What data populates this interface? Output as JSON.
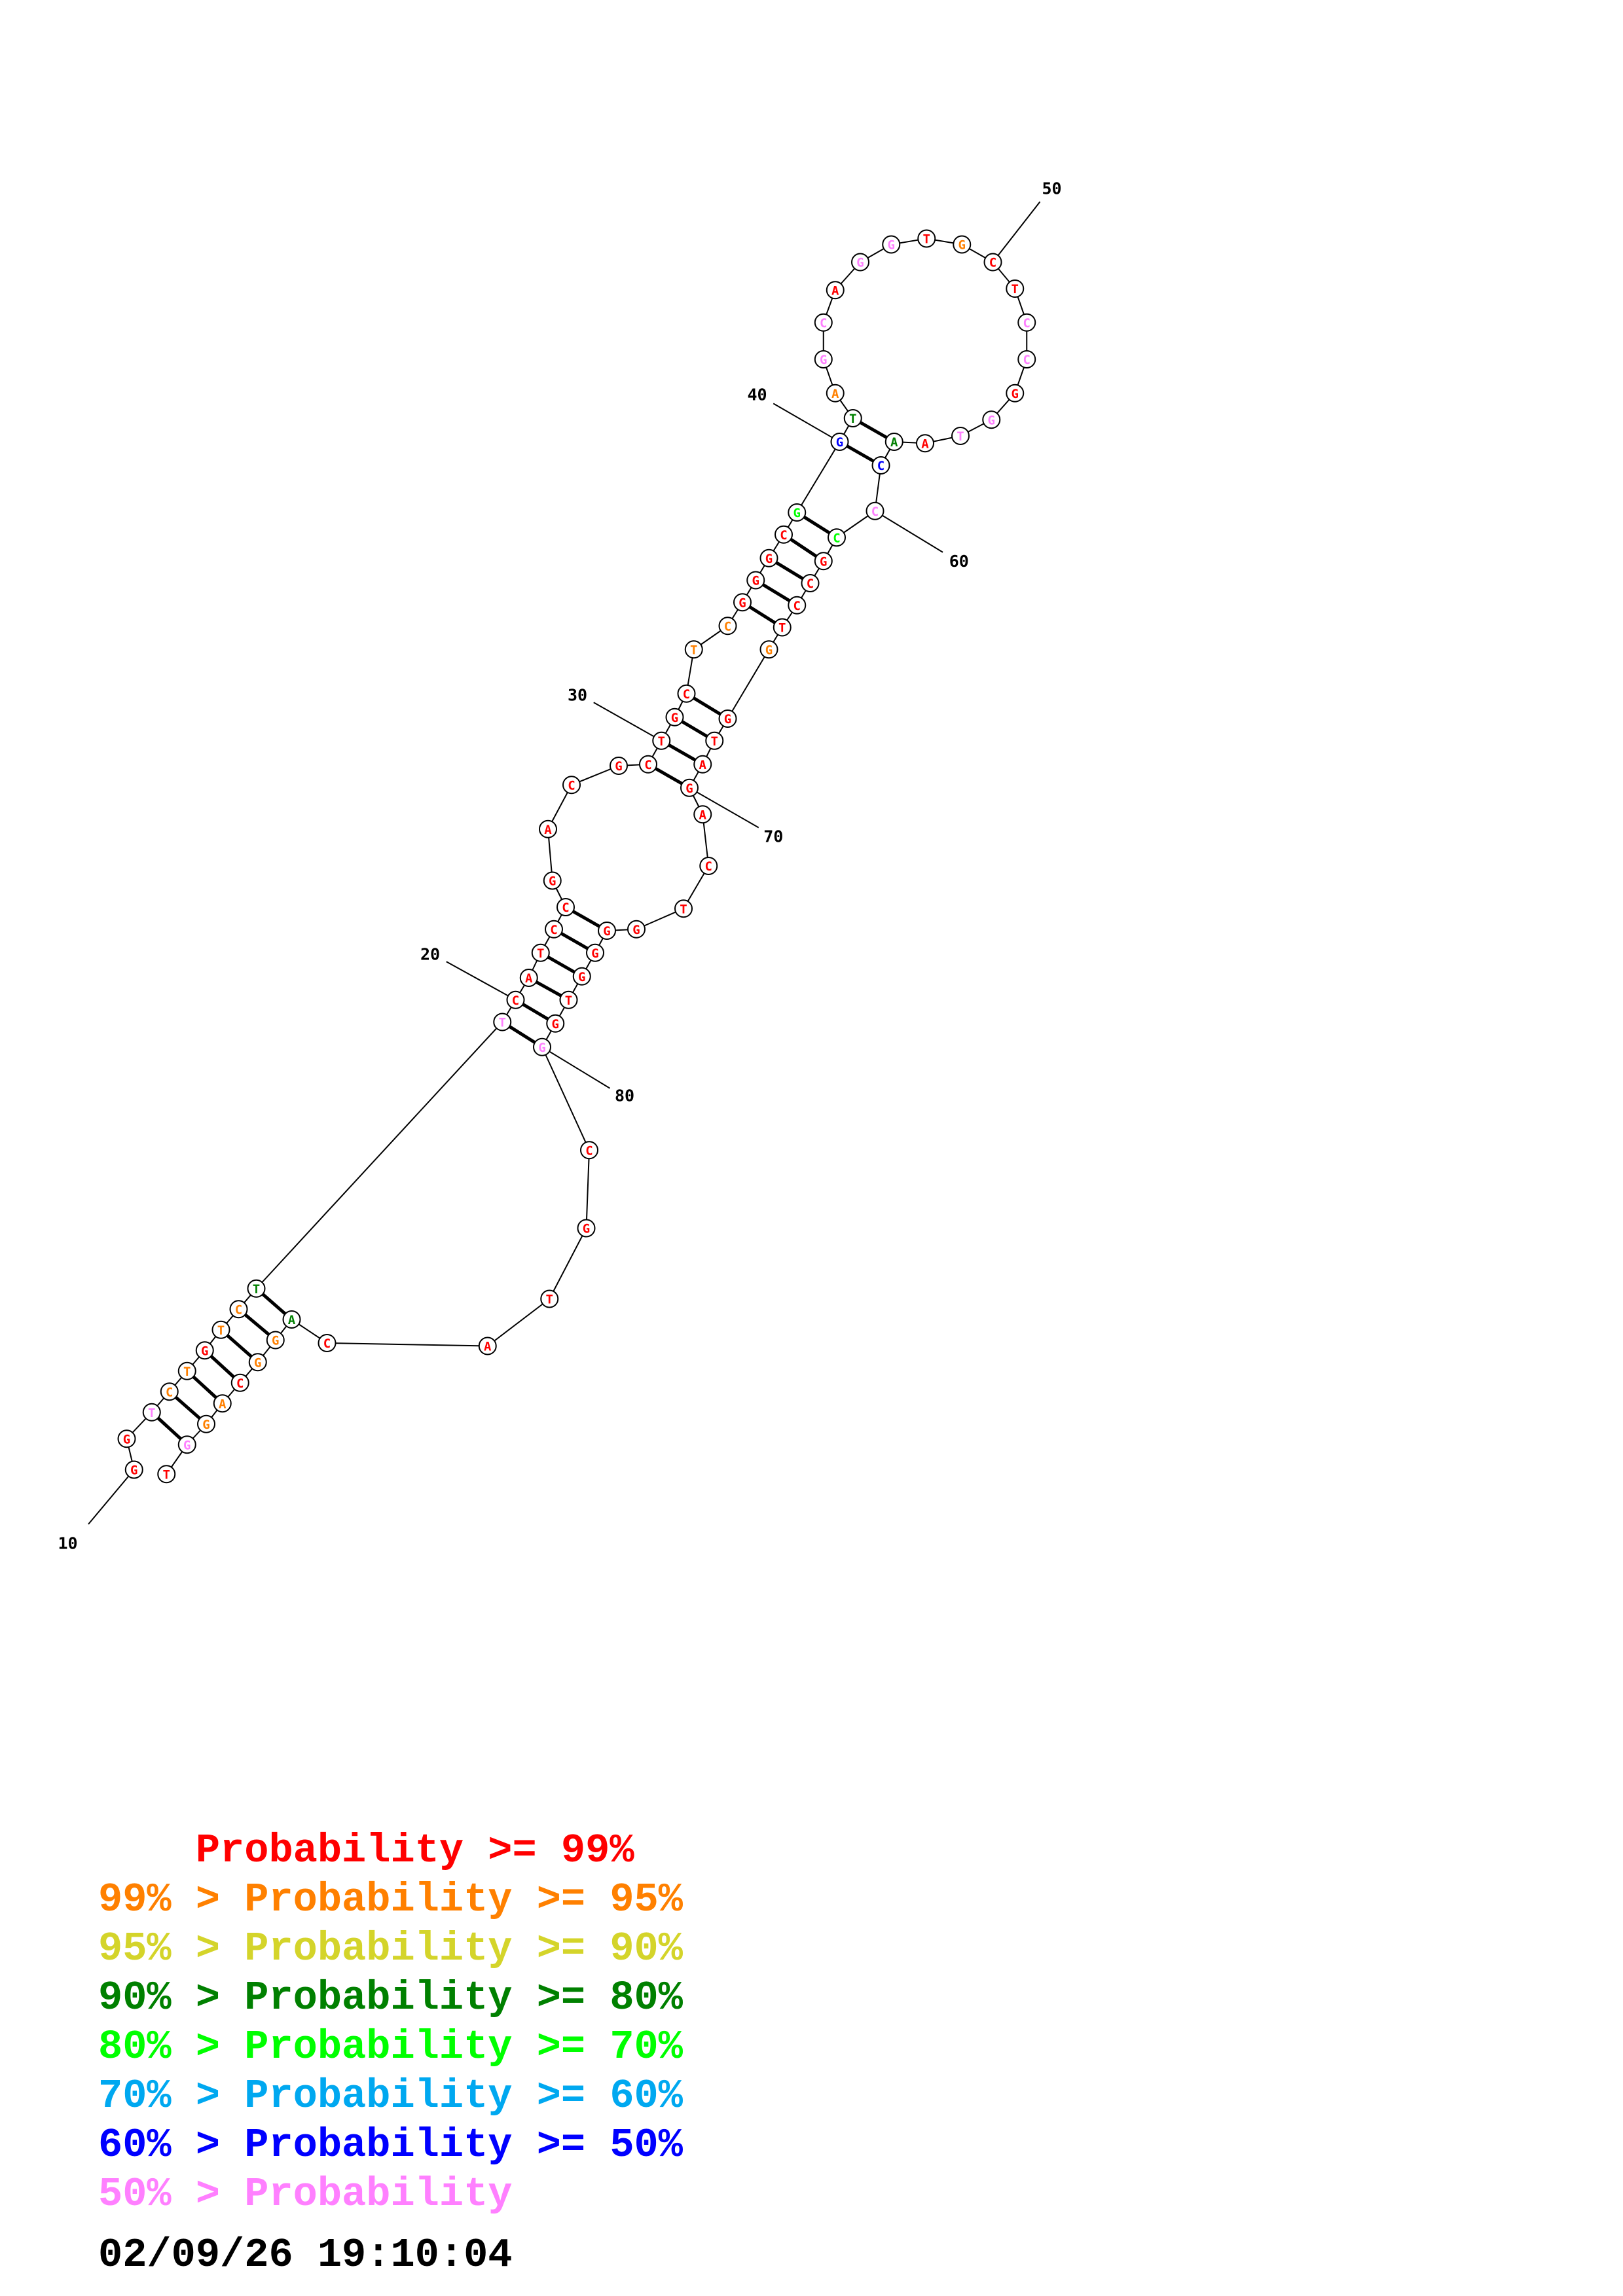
{
  "colors": {
    "p99": "#ff0000",
    "p95": "#ff8000",
    "p90": "#d4d42a",
    "p80": "#008000",
    "p70": "#00ff00",
    "p60": "#00a8f0",
    "p50": "#0000ff",
    "plow": "#ff80ff"
  },
  "nucleotides": [
    {
      "n": 10,
      "base": "G",
      "c": "p99"
    },
    {
      "n": 11,
      "base": "G",
      "c": "p99"
    },
    {
      "n": 12,
      "base": "T",
      "c": "plow"
    },
    {
      "n": 13,
      "base": "C",
      "c": "p95"
    },
    {
      "n": 14,
      "base": "T",
      "c": "p95"
    },
    {
      "n": 15,
      "base": "G",
      "c": "p99"
    },
    {
      "n": 16,
      "base": "T",
      "c": "p95"
    },
    {
      "n": 17,
      "base": "C",
      "c": "p95"
    },
    {
      "n": 18,
      "base": "T",
      "c": "p80"
    },
    {
      "n": 19,
      "base": "T",
      "c": "plow"
    },
    {
      "n": 20,
      "base": "C",
      "c": "p99"
    },
    {
      "n": 21,
      "base": "A",
      "c": "p99"
    },
    {
      "n": 22,
      "base": "T",
      "c": "p99"
    },
    {
      "n": 23,
      "base": "C",
      "c": "p99"
    },
    {
      "n": 24,
      "base": "C",
      "c": "p99"
    },
    {
      "n": 25,
      "base": "G",
      "c": "p99"
    },
    {
      "n": 26,
      "base": "A",
      "c": "p99"
    },
    {
      "n": 27,
      "base": "C",
      "c": "p99"
    },
    {
      "n": 28,
      "base": "G",
      "c": "p99"
    },
    {
      "n": 29,
      "base": "C",
      "c": "p99"
    },
    {
      "n": 30,
      "base": "T",
      "c": "p99"
    },
    {
      "n": 31,
      "base": "G",
      "c": "p99"
    },
    {
      "n": 32,
      "base": "C",
      "c": "p99"
    },
    {
      "n": 33,
      "base": "T",
      "c": "p95"
    },
    {
      "n": 34,
      "base": "C",
      "c": "p95"
    },
    {
      "n": 35,
      "base": "G",
      "c": "p99"
    },
    {
      "n": 36,
      "base": "G",
      "c": "p99"
    },
    {
      "n": 37,
      "base": "G",
      "c": "p99"
    },
    {
      "n": 38,
      "base": "C",
      "c": "p99"
    },
    {
      "n": 39,
      "base": "G",
      "c": "p70"
    },
    {
      "n": 40,
      "base": "G",
      "c": "p50"
    },
    {
      "n": 41,
      "base": "T",
      "c": "p80"
    },
    {
      "n": 42,
      "base": "A",
      "c": "p95"
    },
    {
      "n": 43,
      "base": "G",
      "c": "plow"
    },
    {
      "n": 44,
      "base": "C",
      "c": "plow"
    },
    {
      "n": 45,
      "base": "A",
      "c": "p99"
    },
    {
      "n": 46,
      "base": "G",
      "c": "plow"
    },
    {
      "n": 47,
      "base": "G",
      "c": "plow"
    },
    {
      "n": 48,
      "base": "T",
      "c": "p99"
    },
    {
      "n": 49,
      "base": "G",
      "c": "p95"
    },
    {
      "n": 50,
      "base": "C",
      "c": "p99"
    },
    {
      "n": 51,
      "base": "T",
      "c": "p99"
    },
    {
      "n": 52,
      "base": "C",
      "c": "plow"
    },
    {
      "n": 53,
      "base": "C",
      "c": "plow"
    },
    {
      "n": 54,
      "base": "G",
      "c": "p99"
    },
    {
      "n": 55,
      "base": "G",
      "c": "plow"
    },
    {
      "n": 56,
      "base": "T",
      "c": "plow"
    },
    {
      "n": 57,
      "base": "A",
      "c": "p99"
    },
    {
      "n": 58,
      "base": "A",
      "c": "p80"
    },
    {
      "n": 59,
      "base": "C",
      "c": "p50"
    },
    {
      "n": 60,
      "base": "C",
      "c": "plow"
    },
    {
      "n": 61,
      "base": "C",
      "c": "p70"
    },
    {
      "n": 62,
      "base": "G",
      "c": "p99"
    },
    {
      "n": 63,
      "base": "C",
      "c": "p99"
    },
    {
      "n": 64,
      "base": "C",
      "c": "p99"
    },
    {
      "n": 65,
      "base": "T",
      "c": "p99"
    },
    {
      "n": 66,
      "base": "G",
      "c": "p95"
    },
    {
      "n": 67,
      "base": "G",
      "c": "p99"
    },
    {
      "n": 68,
      "base": "T",
      "c": "p99"
    },
    {
      "n": 69,
      "base": "A",
      "c": "p99"
    },
    {
      "n": 70,
      "base": "G",
      "c": "p99"
    },
    {
      "n": 71,
      "base": "A",
      "c": "p99"
    },
    {
      "n": 72,
      "base": "C",
      "c": "p99"
    },
    {
      "n": 73,
      "base": "T",
      "c": "p99"
    },
    {
      "n": 74,
      "base": "G",
      "c": "p99"
    },
    {
      "n": 75,
      "base": "G",
      "c": "p99"
    },
    {
      "n": 76,
      "base": "G",
      "c": "p99"
    },
    {
      "n": 77,
      "base": "G",
      "c": "p99"
    },
    {
      "n": 78,
      "base": "T",
      "c": "p99"
    },
    {
      "n": 79,
      "base": "G",
      "c": "p99"
    },
    {
      "n": 80,
      "base": "G",
      "c": "plow"
    },
    {
      "n": 81,
      "base": "C",
      "c": "p99"
    },
    {
      "n": 82,
      "base": "G",
      "c": "p99"
    },
    {
      "n": 83,
      "base": "T",
      "c": "p99"
    },
    {
      "n": 84,
      "base": "A",
      "c": "p99"
    },
    {
      "n": 85,
      "base": "C",
      "c": "p99"
    },
    {
      "n": 86,
      "base": "A",
      "c": "p80"
    },
    {
      "n": 87,
      "base": "G",
      "c": "p95"
    },
    {
      "n": 88,
      "base": "G",
      "c": "p95"
    },
    {
      "n": 89,
      "base": "C",
      "c": "p99"
    },
    {
      "n": 90,
      "base": "A",
      "c": "p95"
    },
    {
      "n": 91,
      "base": "G",
      "c": "p95"
    },
    {
      "n": 92,
      "base": "G",
      "c": "plow"
    },
    {
      "n": 93,
      "base": "T",
      "c": "p99"
    }
  ],
  "base_pairs": [
    [
      12,
      92
    ],
    [
      13,
      91
    ],
    [
      14,
      90
    ],
    [
      15,
      89
    ],
    [
      16,
      88
    ],
    [
      17,
      87
    ],
    [
      18,
      86
    ],
    [
      19,
      80
    ],
    [
      20,
      79
    ],
    [
      21,
      78
    ],
    [
      22,
      77
    ],
    [
      23,
      76
    ],
    [
      24,
      75
    ],
    [
      29,
      70
    ],
    [
      30,
      69
    ],
    [
      31,
      68
    ],
    [
      32,
      67
    ],
    [
      35,
      65
    ],
    [
      36,
      64
    ],
    [
      37,
      63
    ],
    [
      38,
      62
    ],
    [
      39,
      61
    ],
    [
      40,
      59
    ],
    [
      41,
      58
    ]
  ],
  "position_labels": [
    {
      "text": "10",
      "anchor": 10
    },
    {
      "text": "20",
      "anchor": 20
    },
    {
      "text": "30",
      "anchor": 30
    },
    {
      "text": "40",
      "anchor": 40
    },
    {
      "text": "50",
      "anchor": 50
    },
    {
      "text": "60",
      "anchor": 60
    },
    {
      "text": "70",
      "anchor": 70
    },
    {
      "text": "80",
      "anchor": 80
    }
  ],
  "legend": [
    {
      "text": "    Probability >= 99%",
      "c": "p99"
    },
    {
      "text": "99% > Probability >= 95%",
      "c": "p95"
    },
    {
      "text": "95% > Probability >= 90%",
      "c": "p90"
    },
    {
      "text": "90% > Probability >= 80%",
      "c": "p80"
    },
    {
      "text": "80% > Probability >= 70%",
      "c": "p70"
    },
    {
      "text": "70% > Probability >= 60%",
      "c": "p60"
    },
    {
      "text": "60% > Probability >= 50%",
      "c": "p50"
    },
    {
      "text": "50% > Probability",
      "c": "plow"
    }
  ],
  "timestamp": "02/09/26 19:10:04"
}
